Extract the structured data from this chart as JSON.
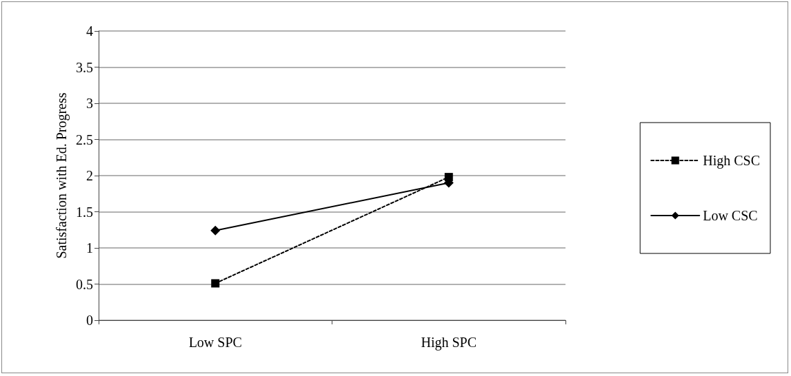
{
  "chart_data": {
    "type": "line",
    "ylabel": "Satisfaction with Ed. Progress",
    "categories": [
      "Low SPC",
      "High SPC"
    ],
    "series": [
      {
        "name": "High CSC",
        "color": "#000000",
        "values": [
          0.51,
          1.98
        ],
        "marker": "square",
        "line_style": "dashed"
      },
      {
        "name": "Low CSC",
        "color": "#000000",
        "values": [
          1.24,
          1.9
        ],
        "marker": "diamond",
        "line_style": "solid"
      }
    ],
    "ylim": [
      0,
      4
    ],
    "yticks": [
      0,
      0.5,
      1,
      1.5,
      2,
      2.5,
      3,
      3.5,
      4
    ],
    "grid": "y",
    "legend": "right"
  }
}
